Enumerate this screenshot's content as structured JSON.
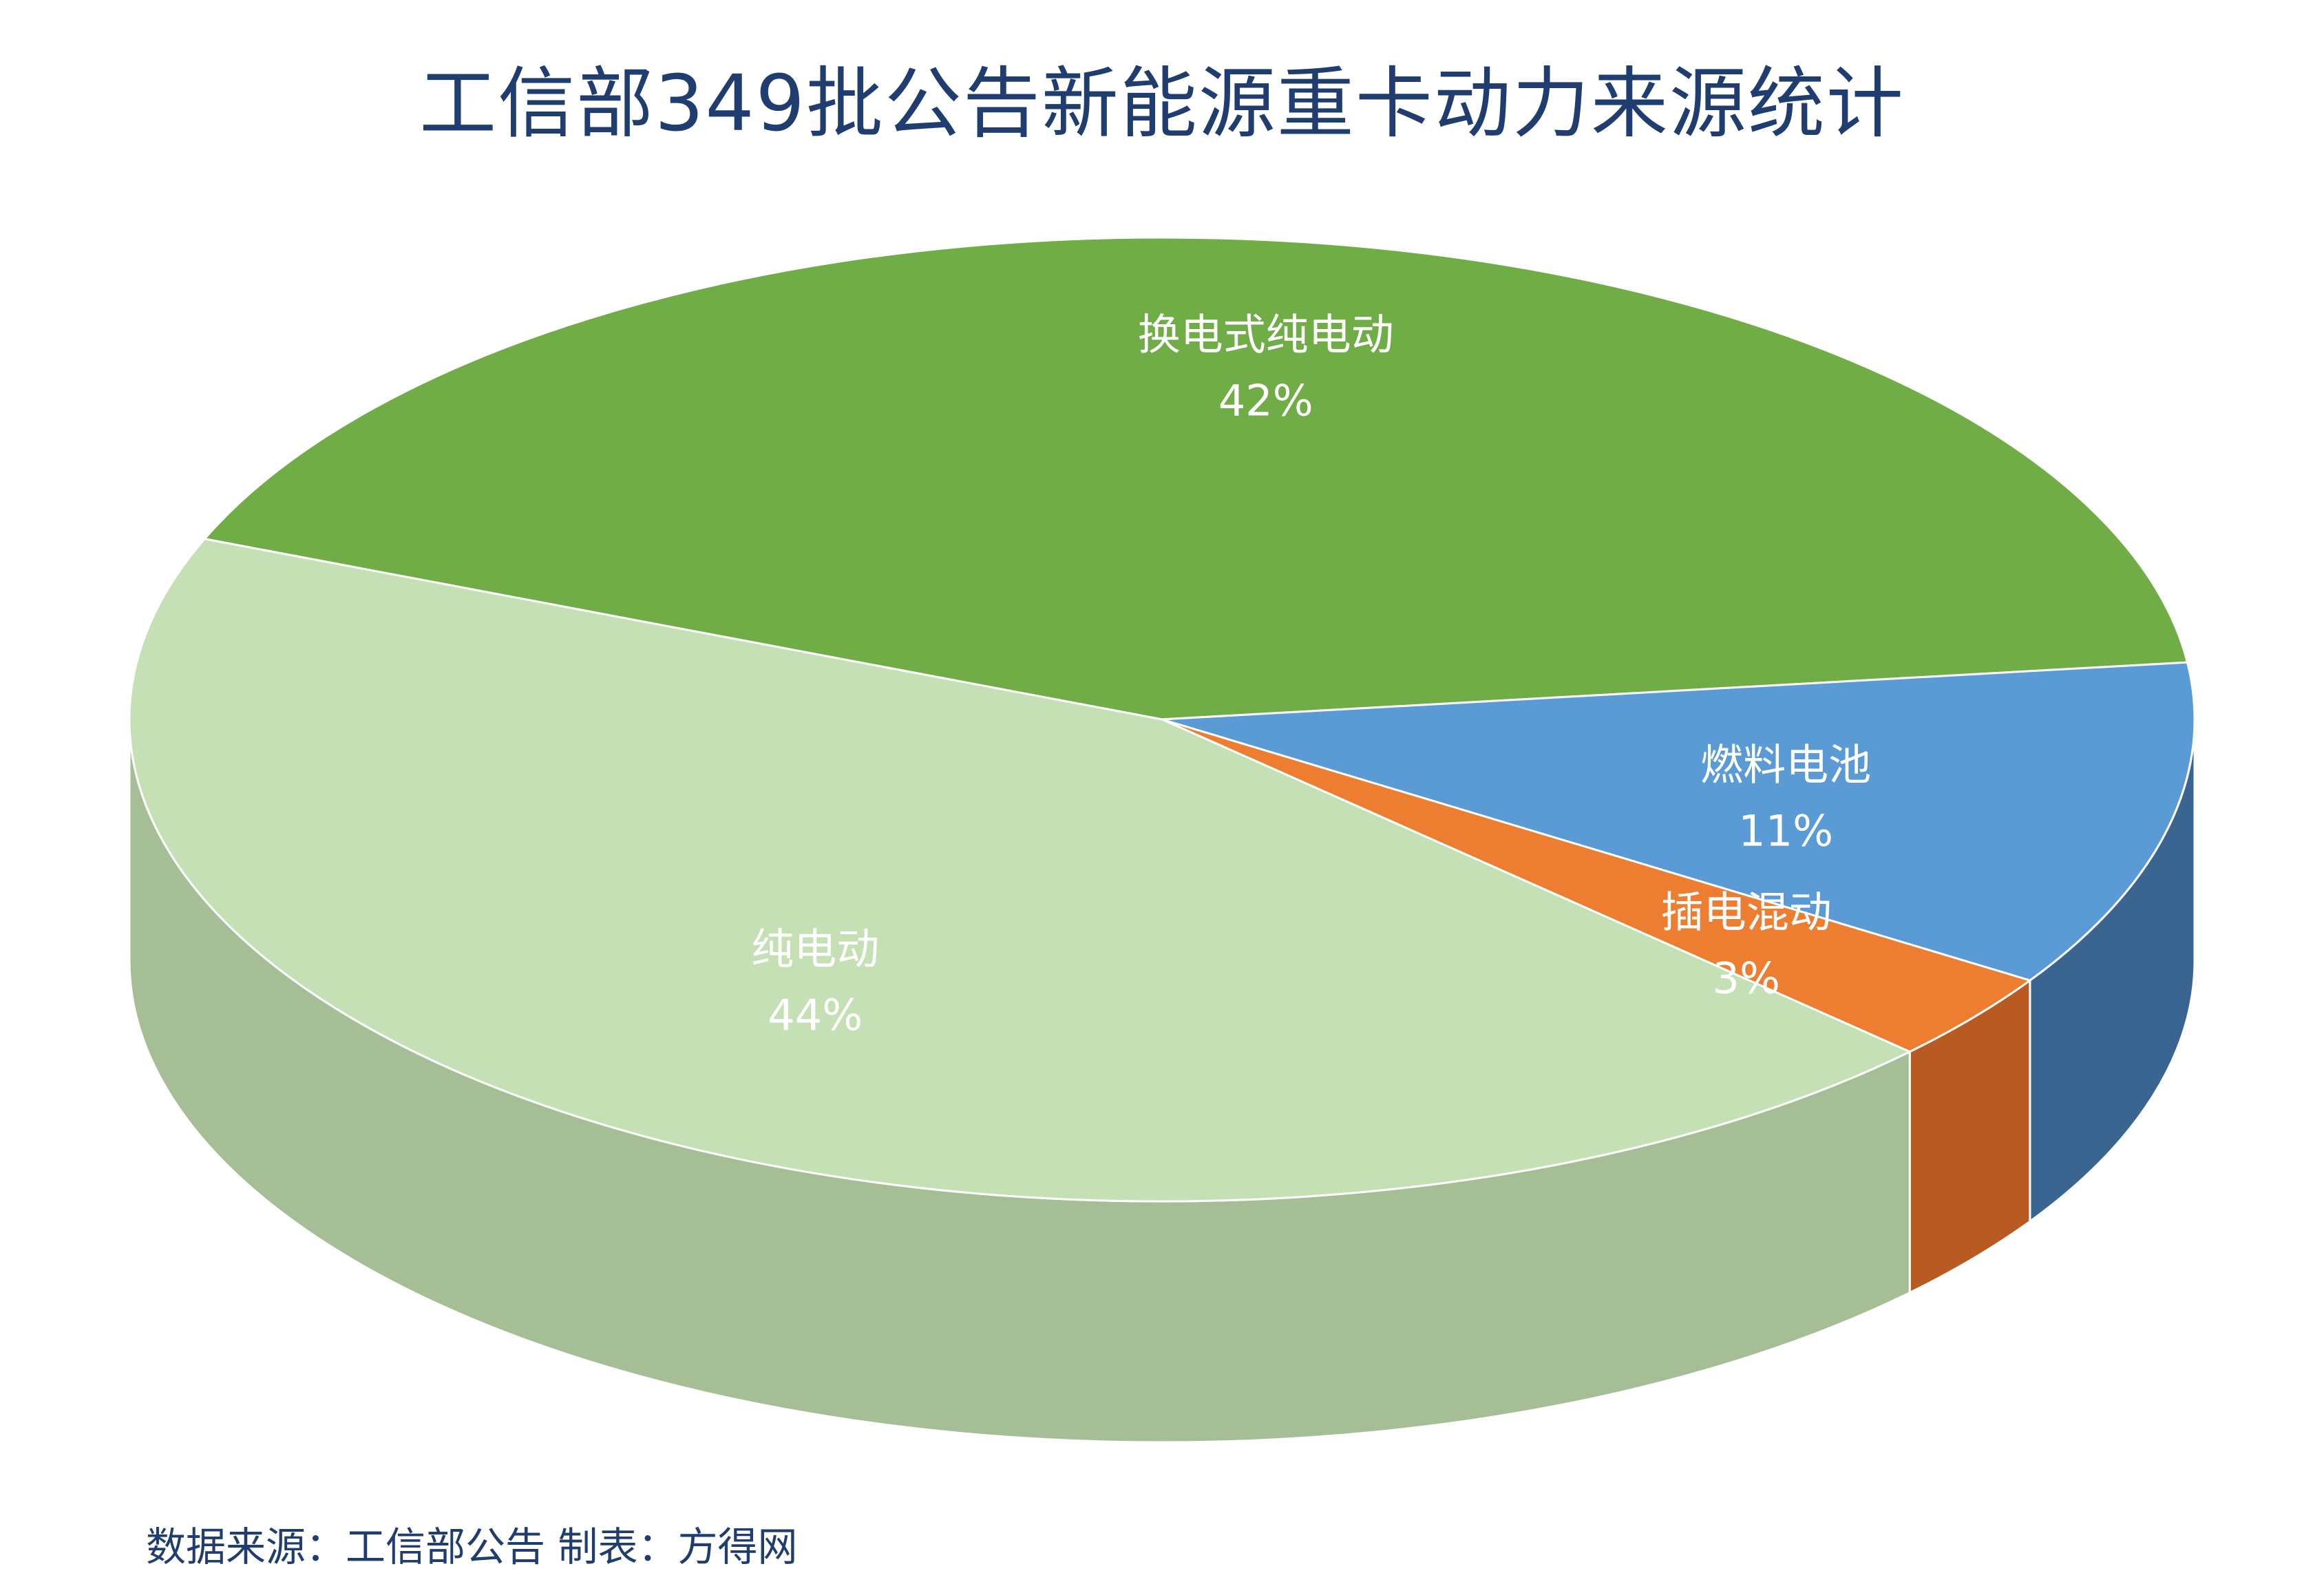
{
  "title": "工信部349批公告新能源重卡动力来源统计",
  "source_note": "数据来源：工信部公告  制表：方得网",
  "chart_data": {
    "type": "pie",
    "title": "工信部349批公告新能源重卡动力来源统计",
    "slices": [
      {
        "name": "换电式纯电动",
        "value": 42,
        "label": "42%",
        "color": "#70ad47",
        "side_color": "#2f4e1e"
      },
      {
        "name": "燃料电池",
        "value": 11,
        "label": "11%",
        "color": "#5b9bd5",
        "side_color": "#3a6591"
      },
      {
        "name": "插电混动",
        "value": 3,
        "label": "3%",
        "color": "#ed7d31",
        "side_color": "#b85a22"
      },
      {
        "name": "纯电动",
        "value": 44,
        "label": "44%",
        "color": "#c5e0b4",
        "side_color": "#a5be96"
      }
    ],
    "legend": "none",
    "style": "3d"
  }
}
